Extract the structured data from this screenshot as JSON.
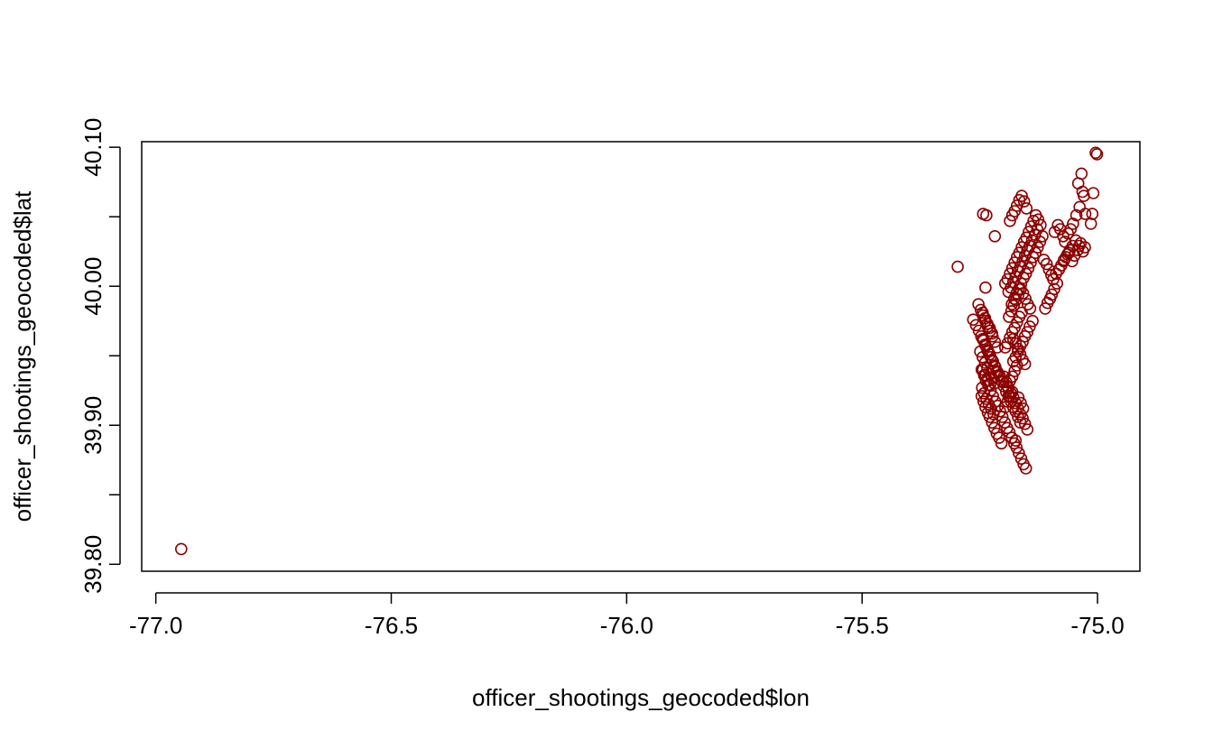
{
  "chart_data": {
    "type": "scatter",
    "title": "",
    "xlabel": "officer_shootings_geocoded$lon",
    "ylabel": "officer_shootings_geocoded$lat",
    "xlim": [
      -77.03,
      -74.91
    ],
    "ylim": [
      39.795,
      40.104
    ],
    "x_ticks": [
      -77.0,
      -76.5,
      -76.0,
      -75.5,
      -75.0
    ],
    "x_tick_labels": [
      "-77.0",
      "-76.5",
      "-76.0",
      "-75.5",
      "-75.0"
    ],
    "y_ticks": [
      39.8,
      39.85,
      39.9,
      39.95,
      40.0,
      40.05,
      40.1
    ],
    "y_tick_labels": [
      "39.80",
      "",
      "39.90",
      "",
      "40.00",
      "",
      "40.10"
    ],
    "grid": false,
    "point_color": "#8b0000",
    "marker": "open-circle",
    "series": [
      {
        "x": [
          -76.946,
          -75.297,
          -75.004,
          -75.001,
          -75.009,
          -75.034,
          -75.029,
          -75.032,
          -75.041,
          -75.026,
          -75.011,
          -75.014,
          -75.038,
          -75.045,
          -75.052,
          -75.057,
          -75.063,
          -75.069,
          -75.073,
          -75.079,
          -75.084,
          -75.091,
          -75.061,
          -75.067,
          -75.072,
          -75.036,
          -75.042,
          -75.049,
          -75.054,
          -75.027,
          -75.031,
          -75.039,
          -75.046,
          -75.053,
          -75.059,
          -75.064,
          -75.071,
          -75.077,
          -75.082,
          -75.088,
          -75.094,
          -75.098,
          -75.103,
          -75.108,
          -75.114,
          -75.086,
          -75.092,
          -75.097,
          -75.101,
          -75.106,
          -75.111,
          -75.117,
          -75.122,
          -75.127,
          -75.132,
          -75.137,
          -75.142,
          -75.147,
          -75.152,
          -75.157,
          -75.162,
          -75.167,
          -75.172,
          -75.177,
          -75.182,
          -75.128,
          -75.133,
          -75.139,
          -75.144,
          -75.149,
          -75.154,
          -75.159,
          -75.164,
          -75.169,
          -75.174,
          -75.179,
          -75.184,
          -75.189,
          -75.121,
          -75.126,
          -75.131,
          -75.136,
          -75.141,
          -75.146,
          -75.151,
          -75.156,
          -75.161,
          -75.166,
          -75.171,
          -75.176,
          -75.181,
          -75.186,
          -75.191,
          -75.196,
          -75.151,
          -75.156,
          -75.161,
          -75.166,
          -75.171,
          -75.176,
          -75.181,
          -75.186,
          -75.143,
          -75.148,
          -75.153,
          -75.158,
          -75.163,
          -75.168,
          -75.173,
          -75.178,
          -75.183,
          -75.188,
          -75.138,
          -75.144,
          -75.149,
          -75.154,
          -75.159,
          -75.164,
          -75.169,
          -75.174,
          -75.179,
          -75.161,
          -75.166,
          -75.171,
          -75.176,
          -75.181,
          -75.186,
          -75.191,
          -75.196,
          -75.171,
          -75.176,
          -75.181,
          -75.186,
          -75.191,
          -75.181,
          -75.186,
          -75.191,
          -75.196,
          -75.243,
          -75.236,
          -75.218,
          -75.264,
          -75.258,
          -75.252,
          -75.247,
          -75.242,
          -75.237,
          -75.232,
          -75.227,
          -75.222,
          -75.217,
          -75.212,
          -75.207,
          -75.202,
          -75.253,
          -75.248,
          -75.243,
          -75.238,
          -75.233,
          -75.228,
          -75.223,
          -75.218,
          -75.213,
          -75.249,
          -75.244,
          -75.239,
          -75.234,
          -75.229,
          -75.224,
          -75.219,
          -75.245,
          -75.241,
          -75.236,
          -75.231,
          -75.226,
          -75.221,
          -75.246,
          -75.242,
          -75.238,
          -75.233,
          -75.229,
          -75.224,
          -75.219,
          -75.214,
          -75.209,
          -75.204,
          -75.199,
          -75.194,
          -75.189,
          -75.184,
          -75.179,
          -75.174,
          -75.169,
          -75.164,
          -75.159,
          -75.154,
          -75.149,
          -75.246,
          -75.241,
          -75.237,
          -75.232,
          -75.227,
          -75.222,
          -75.217,
          -75.212,
          -75.207,
          -75.202,
          -75.197,
          -75.192,
          -75.187,
          -75.182,
          -75.177,
          -75.172,
          -75.167,
          -75.162,
          -75.157,
          -75.152,
          -75.244,
          -75.239,
          -75.234,
          -75.229,
          -75.224,
          -75.219,
          -75.214,
          -75.209,
          -75.204,
          -75.199,
          -75.194,
          -75.189,
          -75.184,
          -75.179,
          -75.174,
          -75.169,
          -75.164,
          -75.244,
          -75.239,
          -75.234,
          -75.229,
          -75.224,
          -75.179,
          -75.174,
          -75.169,
          -75.164,
          -75.159,
          -75.154,
          -75.243,
          -75.238,
          -75.233,
          -75.228,
          -75.168,
          -75.163,
          -75.158,
          -75.238,
          -75.174
        ],
        "y": [
          39.811,
          40.014,
          40.096,
          40.095,
          40.067,
          40.081,
          40.065,
          40.068,
          40.074,
          40.052,
          40.052,
          40.045,
          40.057,
          40.051,
          40.045,
          40.041,
          40.038,
          40.032,
          40.036,
          40.041,
          40.044,
          40.039,
          40.024,
          40.021,
          40.018,
          40.031,
          40.026,
          40.022,
          40.018,
          40.028,
          40.025,
          40.029,
          40.033,
          40.029,
          40.026,
          40.023,
          40.019,
          40.015,
          40.012,
          40.009,
          40.005,
          40.008,
          40.012,
          40.016,
          40.019,
          40.002,
          39.998,
          39.994,
          39.991,
          39.988,
          39.984,
          40.036,
          40.032,
          40.028,
          40.024,
          40.021,
          40.017,
          40.013,
          40.009,
          40.006,
          40.002,
          39.998,
          39.995,
          39.991,
          39.987,
          40.041,
          40.037,
          40.033,
          40.029,
          40.026,
          40.022,
          40.018,
          40.014,
          40.011,
          40.007,
          40.003,
          39.999,
          39.996,
          40.044,
          40.048,
          40.051,
          40.047,
          40.043,
          40.039,
          40.035,
          40.032,
          40.028,
          40.024,
          40.021,
          40.017,
          40.013,
          40.009,
          40.005,
          40.002,
          40.056,
          40.061,
          40.065,
          40.062,
          40.058,
          40.054,
          40.051,
          40.047,
          39.984,
          39.987,
          39.991,
          39.995,
          39.998,
          39.994,
          39.99,
          39.986,
          39.982,
          39.978,
          39.975,
          39.971,
          39.967,
          39.964,
          39.96,
          39.957,
          39.953,
          39.949,
          39.946,
          39.981,
          39.978,
          39.974,
          39.97,
          39.967,
          39.963,
          39.959,
          39.956,
          39.943,
          39.939,
          39.935,
          39.932,
          39.928,
          39.924,
          39.921,
          39.917,
          39.913,
          40.052,
          40.051,
          40.036,
          39.976,
          39.972,
          39.968,
          39.964,
          39.961,
          39.957,
          39.953,
          39.949,
          39.946,
          39.942,
          39.938,
          39.935,
          39.931,
          39.987,
          39.983,
          39.979,
          39.975,
          39.971,
          39.968,
          39.964,
          39.96,
          39.956,
          39.953,
          39.949,
          39.945,
          39.941,
          39.937,
          39.934,
          39.93,
          39.927,
          39.923,
          39.919,
          39.915,
          39.912,
          39.908,
          39.921,
          39.917,
          39.913,
          39.909,
          39.906,
          39.902,
          39.898,
          39.894,
          39.891,
          39.887,
          39.935,
          39.931,
          39.927,
          39.923,
          39.92,
          39.916,
          39.912,
          39.908,
          39.905,
          39.901,
          39.897,
          39.94,
          39.936,
          39.932,
          39.929,
          39.925,
          39.921,
          39.917,
          39.914,
          39.91,
          39.906,
          39.902,
          39.898,
          39.895,
          39.891,
          39.887,
          39.884,
          39.88,
          39.876,
          39.872,
          39.869,
          39.962,
          39.958,
          39.954,
          39.951,
          39.947,
          39.943,
          39.939,
          39.936,
          39.932,
          39.928,
          39.924,
          39.921,
          39.917,
          39.913,
          39.91,
          39.906,
          39.902,
          39.981,
          39.977,
          39.973,
          39.97,
          39.966,
          39.962,
          39.959,
          39.955,
          39.951,
          39.947,
          39.944,
          39.94,
          39.936,
          39.932,
          39.929,
          39.92,
          39.916,
          39.912,
          39.999,
          39.889
        ]
      }
    ]
  }
}
